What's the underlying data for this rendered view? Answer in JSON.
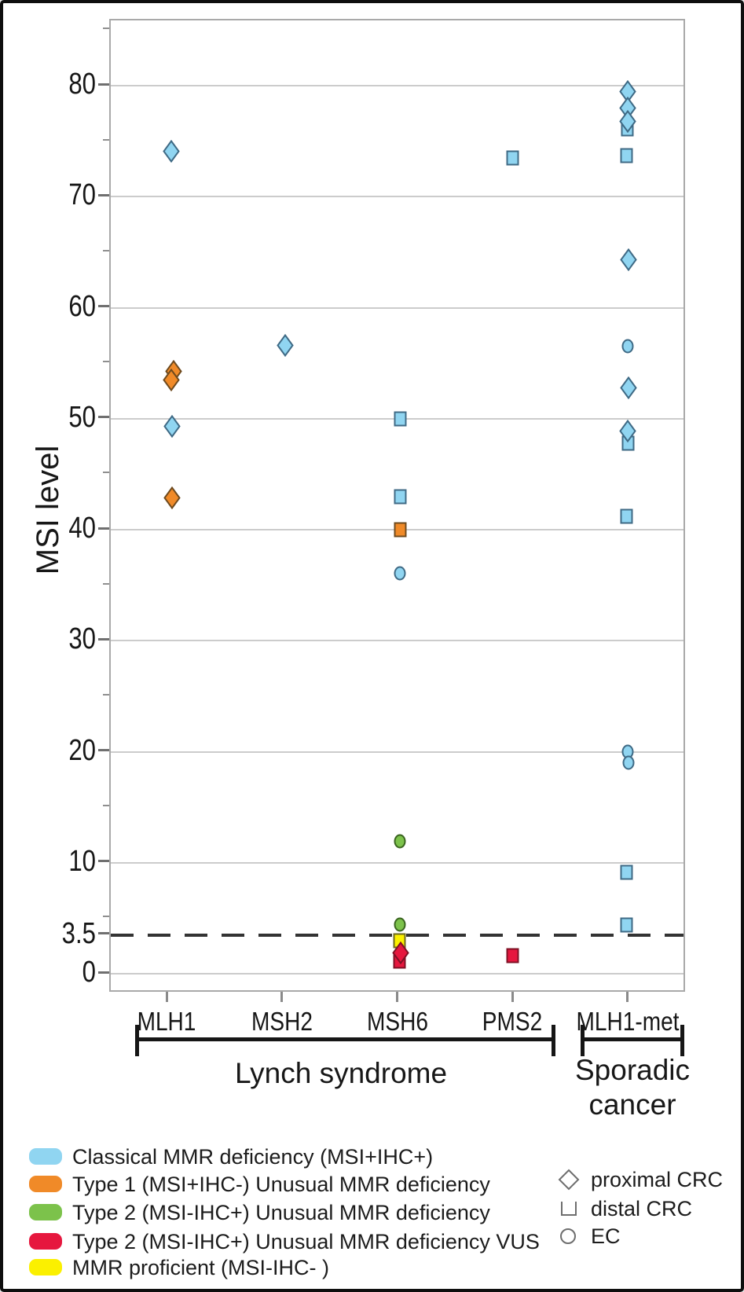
{
  "chart_data": {
    "type": "scatter",
    "ylabel": "MSI level",
    "ylim": [
      0,
      86
    ],
    "grid": true,
    "y_labeled_ticks": [
      {
        "value": 80,
        "label": "80"
      },
      {
        "value": 70,
        "label": "70"
      },
      {
        "value": 60,
        "label": "60"
      },
      {
        "value": 50,
        "label": "50"
      },
      {
        "value": 40,
        "label": "40"
      },
      {
        "value": 30,
        "label": "30"
      },
      {
        "value": 20,
        "label": "20"
      },
      {
        "value": 10,
        "label": "10"
      },
      {
        "value": 3.5,
        "label": "3.5"
      },
      {
        "value": 0,
        "label": "0"
      }
    ],
    "y_gridlines": [
      80,
      70,
      60,
      50,
      40,
      30,
      20,
      10,
      0
    ],
    "y_minor_ticks": [
      85,
      75,
      65,
      55,
      45,
      35,
      25,
      15,
      5
    ],
    "threshold": {
      "value": 3.5,
      "style": "dashed"
    },
    "categories": [
      "MLH1",
      "MSH2",
      "MSH6",
      "PMS2",
      "MLH1-met"
    ],
    "category_groups": [
      {
        "label": "Lynch syndrome",
        "categories": [
          "MLH1",
          "MSH2",
          "MSH6",
          "PMS2"
        ]
      },
      {
        "label": "Sporadic cancer",
        "categories": [
          "MLH1-met"
        ]
      }
    ],
    "class_order": [
      "classical",
      "type1",
      "type2",
      "type2vus",
      "proficient"
    ],
    "classes": {
      "classical": {
        "label": "Classical MMR deficiency (MSI+IHC+)",
        "fill": "#90D5F1",
        "stroke": "#3F6A85"
      },
      "type1": {
        "label": "Type 1 (MSI+IHC-) Unusual MMR deficiency",
        "fill": "#F08A28",
        "stroke": "#6E4A1E"
      },
      "type2": {
        "label": "Type 2 (MSI-IHC+) Unusual MMR deficiency",
        "fill": "#7CC24B",
        "stroke": "#3A641F"
      },
      "type2vus": {
        "label": "Type 2 (MSI-IHC+) Unusual MMR deficiency VUS",
        "fill": "#E6173E",
        "stroke": "#7E1024"
      },
      "proficient": {
        "label": "MMR proficient (MSI-IHC- )",
        "fill": "#FBF000",
        "stroke": "#6E6A1E"
      }
    },
    "shape_legend": [
      {
        "shape": "diamond",
        "label": "proximal CRC"
      },
      {
        "shape": "square",
        "label": "distal CRC"
      },
      {
        "shape": "circle",
        "label": "EC"
      }
    ],
    "points": [
      {
        "category": "MLH1",
        "msi": 74.1,
        "shape": "diamond",
        "class": "classical",
        "dx": 4
      },
      {
        "category": "MLH1",
        "msi": 54.3,
        "shape": "diamond",
        "class": "type1",
        "dx": 7
      },
      {
        "category": "MLH1",
        "msi": 53.5,
        "shape": "diamond",
        "class": "type1",
        "dx": 4
      },
      {
        "category": "MLH1",
        "msi": 49.3,
        "shape": "diamond",
        "class": "classical",
        "dx": 5
      },
      {
        "category": "MLH1",
        "msi": 42.9,
        "shape": "diamond",
        "class": "type1",
        "dx": 5
      },
      {
        "category": "MSH2",
        "msi": 56.6,
        "shape": "diamond",
        "class": "classical",
        "dx": 2
      },
      {
        "category": "MSH6",
        "msi": 50.0,
        "shape": "square",
        "class": "classical",
        "dx": 2
      },
      {
        "category": "MSH6",
        "msi": 43.0,
        "shape": "square",
        "class": "classical",
        "dx": 2
      },
      {
        "category": "MSH6",
        "msi": 40.0,
        "shape": "square",
        "class": "type1",
        "dx": 2
      },
      {
        "category": "MSH6",
        "msi": 36.1,
        "shape": "circle",
        "class": "classical",
        "dx": 1
      },
      {
        "category": "MSH6",
        "msi": 11.9,
        "shape": "circle",
        "class": "type2",
        "dx": 1
      },
      {
        "category": "MSH6",
        "msi": 4.4,
        "shape": "circle",
        "class": "type2",
        "dx": 1
      },
      {
        "category": "MSH6",
        "msi": 3.0,
        "shape": "square",
        "class": "proficient",
        "dx": 1
      },
      {
        "category": "MSH6",
        "msi": 1.1,
        "shape": "square",
        "class": "type2vus",
        "dx": 1
      },
      {
        "category": "MSH6",
        "msi": 1.9,
        "shape": "diamond",
        "class": "type2vus",
        "dx": 2
      },
      {
        "category": "PMS2",
        "msi": 73.5,
        "shape": "square",
        "class": "classical",
        "dx": -2
      },
      {
        "category": "PMS2",
        "msi": 1.6,
        "shape": "square",
        "class": "type2vus",
        "dx": -2
      },
      {
        "category": "MLH1-met",
        "msi": 79.5,
        "shape": "diamond",
        "class": "classical",
        "dx": -2
      },
      {
        "category": "MLH1-met",
        "msi": 78.0,
        "shape": "diamond",
        "class": "classical",
        "dx": -2
      },
      {
        "category": "MLH1-met",
        "msi": 76.1,
        "shape": "square",
        "class": "classical",
        "dx": -2
      },
      {
        "category": "MLH1-met",
        "msi": 76.8,
        "shape": "diamond",
        "class": "classical",
        "dx": -2
      },
      {
        "category": "MLH1-met",
        "msi": 73.7,
        "shape": "square",
        "class": "classical",
        "dx": -3
      },
      {
        "category": "MLH1-met",
        "msi": 64.3,
        "shape": "diamond",
        "class": "classical",
        "dx": -1
      },
      {
        "category": "MLH1-met",
        "msi": 56.5,
        "shape": "circle",
        "class": "classical",
        "dx": -2
      },
      {
        "category": "MLH1-met",
        "msi": 52.8,
        "shape": "diamond",
        "class": "classical",
        "dx": -1
      },
      {
        "category": "MLH1-met",
        "msi": 47.8,
        "shape": "square",
        "class": "classical",
        "dx": -1
      },
      {
        "category": "MLH1-met",
        "msi": 48.9,
        "shape": "diamond",
        "class": "classical",
        "dx": -2
      },
      {
        "category": "MLH1-met",
        "msi": 41.2,
        "shape": "square",
        "class": "classical",
        "dx": -3
      },
      {
        "category": "MLH1-met",
        "msi": 20.0,
        "shape": "circle",
        "class": "classical",
        "dx": -2
      },
      {
        "category": "MLH1-met",
        "msi": 19.0,
        "shape": "circle",
        "class": "classical",
        "dx": -1
      },
      {
        "category": "MLH1-met",
        "msi": 9.1,
        "shape": "square",
        "class": "classical",
        "dx": -3
      },
      {
        "category": "MLH1-met",
        "msi": 4.4,
        "shape": "square",
        "class": "classical",
        "dx": -3
      }
    ]
  }
}
